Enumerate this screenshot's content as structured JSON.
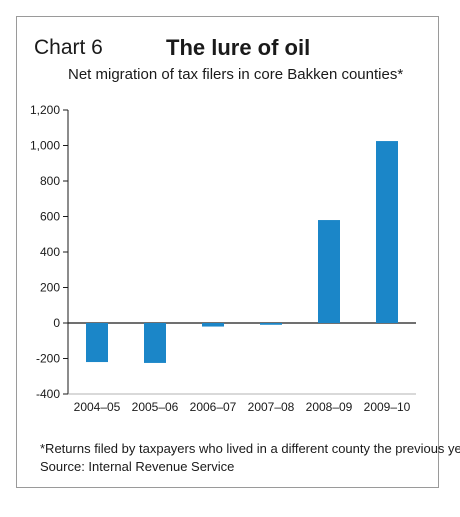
{
  "chart_label": "Chart 6",
  "footnote": "*Returns filed by taxpayers who lived in a different county the previous year",
  "source": "Source: Internal Revenue Service",
  "colors": {
    "bar": "#1b86c8",
    "axis": "#1a1a1a",
    "grid": "#9a9a9a",
    "border": "#9a9a9a"
  },
  "chart_data": {
    "type": "bar",
    "title": "The lure of oil",
    "subtitle": "Net migration of tax filers in core Bakken counties*",
    "categories": [
      "2004–05",
      "2005–06",
      "2006–07",
      "2007–08",
      "2008–09",
      "2009–10"
    ],
    "values": [
      -220,
      -225,
      -20,
      -10,
      580,
      1025
    ],
    "xlabel": "",
    "ylabel": "",
    "ylim": [
      -400,
      1200
    ],
    "yticks": [
      1200,
      1000,
      800,
      600,
      400,
      200,
      0,
      -200,
      -400
    ],
    "ytick_labels": [
      "1,200",
      "1,000",
      "800",
      "600",
      "400",
      "200",
      "0",
      "-200",
      "-400"
    ],
    "grid": false,
    "legend": "none"
  }
}
